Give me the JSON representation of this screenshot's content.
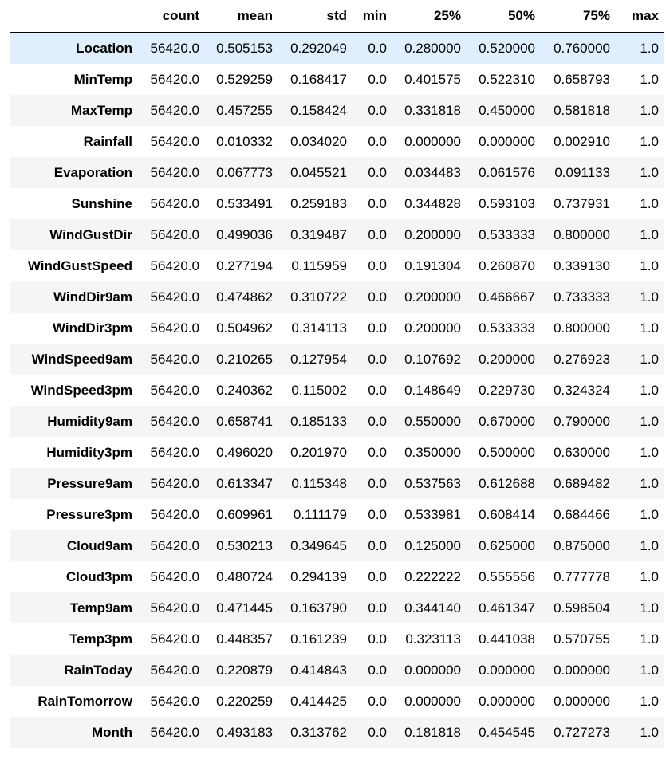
{
  "table": {
    "columns": [
      "count",
      "mean",
      "std",
      "min",
      "25%",
      "50%",
      "75%",
      "max"
    ],
    "hovered_row": 0,
    "rows": [
      {
        "label": "Location",
        "values": [
          "56420.0",
          "0.505153",
          "0.292049",
          "0.0",
          "0.280000",
          "0.520000",
          "0.760000",
          "1.0"
        ]
      },
      {
        "label": "MinTemp",
        "values": [
          "56420.0",
          "0.529259",
          "0.168417",
          "0.0",
          "0.401575",
          "0.522310",
          "0.658793",
          "1.0"
        ]
      },
      {
        "label": "MaxTemp",
        "values": [
          "56420.0",
          "0.457255",
          "0.158424",
          "0.0",
          "0.331818",
          "0.450000",
          "0.581818",
          "1.0"
        ]
      },
      {
        "label": "Rainfall",
        "values": [
          "56420.0",
          "0.010332",
          "0.034020",
          "0.0",
          "0.000000",
          "0.000000",
          "0.002910",
          "1.0"
        ]
      },
      {
        "label": "Evaporation",
        "values": [
          "56420.0",
          "0.067773",
          "0.045521",
          "0.0",
          "0.034483",
          "0.061576",
          "0.091133",
          "1.0"
        ]
      },
      {
        "label": "Sunshine",
        "values": [
          "56420.0",
          "0.533491",
          "0.259183",
          "0.0",
          "0.344828",
          "0.593103",
          "0.737931",
          "1.0"
        ]
      },
      {
        "label": "WindGustDir",
        "values": [
          "56420.0",
          "0.499036",
          "0.319487",
          "0.0",
          "0.200000",
          "0.533333",
          "0.800000",
          "1.0"
        ]
      },
      {
        "label": "WindGustSpeed",
        "values": [
          "56420.0",
          "0.277194",
          "0.115959",
          "0.0",
          "0.191304",
          "0.260870",
          "0.339130",
          "1.0"
        ]
      },
      {
        "label": "WindDir9am",
        "values": [
          "56420.0",
          "0.474862",
          "0.310722",
          "0.0",
          "0.200000",
          "0.466667",
          "0.733333",
          "1.0"
        ]
      },
      {
        "label": "WindDir3pm",
        "values": [
          "56420.0",
          "0.504962",
          "0.314113",
          "0.0",
          "0.200000",
          "0.533333",
          "0.800000",
          "1.0"
        ]
      },
      {
        "label": "WindSpeed9am",
        "values": [
          "56420.0",
          "0.210265",
          "0.127954",
          "0.0",
          "0.107692",
          "0.200000",
          "0.276923",
          "1.0"
        ]
      },
      {
        "label": "WindSpeed3pm",
        "values": [
          "56420.0",
          "0.240362",
          "0.115002",
          "0.0",
          "0.148649",
          "0.229730",
          "0.324324",
          "1.0"
        ]
      },
      {
        "label": "Humidity9am",
        "values": [
          "56420.0",
          "0.658741",
          "0.185133",
          "0.0",
          "0.550000",
          "0.670000",
          "0.790000",
          "1.0"
        ]
      },
      {
        "label": "Humidity3pm",
        "values": [
          "56420.0",
          "0.496020",
          "0.201970",
          "0.0",
          "0.350000",
          "0.500000",
          "0.630000",
          "1.0"
        ]
      },
      {
        "label": "Pressure9am",
        "values": [
          "56420.0",
          "0.613347",
          "0.115348",
          "0.0",
          "0.537563",
          "0.612688",
          "0.689482",
          "1.0"
        ]
      },
      {
        "label": "Pressure3pm",
        "values": [
          "56420.0",
          "0.609961",
          "0.111179",
          "0.0",
          "0.533981",
          "0.608414",
          "0.684466",
          "1.0"
        ]
      },
      {
        "label": "Cloud9am",
        "values": [
          "56420.0",
          "0.530213",
          "0.349645",
          "0.0",
          "0.125000",
          "0.625000",
          "0.875000",
          "1.0"
        ]
      },
      {
        "label": "Cloud3pm",
        "values": [
          "56420.0",
          "0.480724",
          "0.294139",
          "0.0",
          "0.222222",
          "0.555556",
          "0.777778",
          "1.0"
        ]
      },
      {
        "label": "Temp9am",
        "values": [
          "56420.0",
          "0.471445",
          "0.163790",
          "0.0",
          "0.344140",
          "0.461347",
          "0.598504",
          "1.0"
        ]
      },
      {
        "label": "Temp3pm",
        "values": [
          "56420.0",
          "0.448357",
          "0.161239",
          "0.0",
          "0.323113",
          "0.441038",
          "0.570755",
          "1.0"
        ]
      },
      {
        "label": "RainToday",
        "values": [
          "56420.0",
          "0.220879",
          "0.414843",
          "0.0",
          "0.000000",
          "0.000000",
          "0.000000",
          "1.0"
        ]
      },
      {
        "label": "RainTomorrow",
        "values": [
          "56420.0",
          "0.220259",
          "0.414425",
          "0.0",
          "0.000000",
          "0.000000",
          "0.000000",
          "1.0"
        ]
      },
      {
        "label": "Month",
        "values": [
          "56420.0",
          "0.493183",
          "0.313762",
          "0.0",
          "0.181818",
          "0.454545",
          "0.727273",
          "1.0"
        ]
      }
    ]
  }
}
